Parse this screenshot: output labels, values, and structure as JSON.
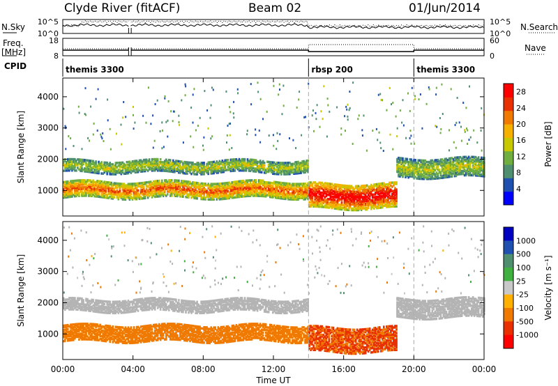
{
  "header": {
    "station": "Clyde River (fitACF)",
    "beam": "Beam 02",
    "date": "01/Jun/2014"
  },
  "params": {
    "nsky_label": "N.Sky",
    "nsearch_label": "N.Search",
    "freq_label": "Freq.",
    "freq_unit": "[MHz]",
    "nave_label": "Nave",
    "cpid_label": "CPID",
    "nsky_ticks": [
      "10^5",
      "10^0"
    ],
    "nsearch_ticks": [
      "10^5",
      "10^0"
    ],
    "freq_ticks": [
      "18",
      "8"
    ],
    "nave_ticks": [
      "60",
      "0"
    ]
  },
  "cpid_segments": [
    {
      "label": "themis 3300",
      "start": "00:00",
      "end": "14:00"
    },
    {
      "label": "rbsp 200",
      "start": "14:00",
      "end": "20:00"
    },
    {
      "label": "themis 3300",
      "start": "20:00",
      "end": "24:00"
    }
  ],
  "colors": {
    "power_scale": [
      "#0000ff",
      "#2050b0",
      "#4f8f6f",
      "#6fae3f",
      "#c8c800",
      "#f5b000",
      "#f07a00",
      "#e83000",
      "#ff0000"
    ],
    "velocity_scale": [
      "#0000c0",
      "#2050b0",
      "#4f8f6f",
      "#40b040",
      "#c8c8c8",
      "#ffb000",
      "#f07a00",
      "#e83000",
      "#ff0000"
    ],
    "ground_scatter": "#b4b4b4"
  },
  "chart_data": [
    {
      "type": "heatmap",
      "title": "",
      "xlabel": "Time UT",
      "ylabel": "Slant Range [km]",
      "x_ticks": [
        "00:00",
        "04:00",
        "08:00",
        "12:00",
        "16:00",
        "20:00",
        "00:00"
      ],
      "y_ticks": [
        1000,
        2000,
        3000,
        4000
      ],
      "xlim_hours": [
        0,
        24
      ],
      "ylim_km": [
        180,
        4600
      ],
      "colorbar": {
        "label": "Power [dB]",
        "ticks": [
          "4",
          "8",
          "12",
          "16",
          "20",
          "24",
          "28"
        ],
        "range": [
          0,
          30
        ]
      },
      "echo_bands": [
        {
          "start_h": 0.0,
          "end_h": 14.0,
          "center_km": 1000,
          "width_km": 260,
          "power_db": 22
        },
        {
          "start_h": 0.0,
          "end_h": 14.0,
          "center_km": 1750,
          "width_km": 200,
          "power_db": 14
        },
        {
          "start_h": 14.0,
          "end_h": 19.0,
          "center_km": 800,
          "width_km": 400,
          "power_db": 28
        },
        {
          "start_h": 19.0,
          "end_h": 24.0,
          "center_km": 1700,
          "width_km": 300,
          "power_db": 14
        }
      ]
    },
    {
      "type": "heatmap",
      "title": "",
      "xlabel": "Time UT",
      "ylabel": "Slant Range [km]",
      "x_ticks": [
        "00:00",
        "04:00",
        "08:00",
        "12:00",
        "16:00",
        "20:00",
        "00:00"
      ],
      "y_ticks": [
        1000,
        2000,
        3000,
        4000
      ],
      "xlim_hours": [
        0,
        24
      ],
      "ylim_km": [
        180,
        4600
      ],
      "colorbar": {
        "label": "Velocity [m s⁻¹]",
        "ticks": [
          "1000",
          "500",
          "100",
          "25",
          "-25",
          "-100",
          "-500",
          "-1000"
        ]
      },
      "echo_bands": [
        {
          "start_h": 0.0,
          "end_h": 14.0,
          "center_km": 1000,
          "width_km": 260,
          "velocity_ms": -300
        },
        {
          "start_h": 0.0,
          "end_h": 14.0,
          "center_km": 1900,
          "width_km": 200,
          "velocity_ms": 0
        },
        {
          "start_h": 14.0,
          "end_h": 19.0,
          "center_km": 800,
          "width_km": 400,
          "velocity_ms": -600
        },
        {
          "start_h": 19.0,
          "end_h": 24.0,
          "center_km": 1800,
          "width_km": 300,
          "velocity_ms": 0
        }
      ]
    }
  ]
}
